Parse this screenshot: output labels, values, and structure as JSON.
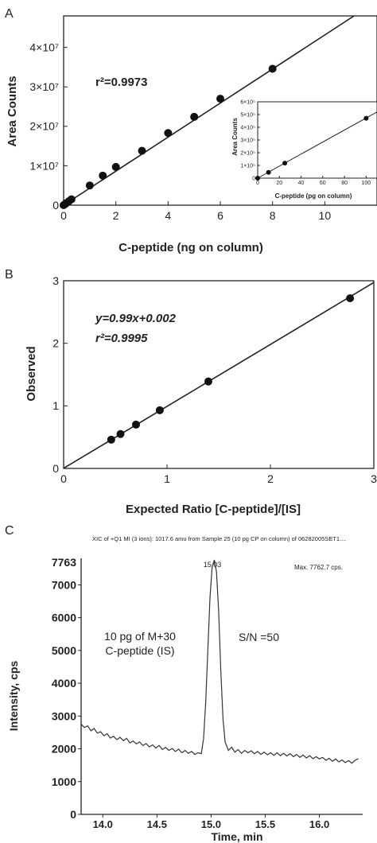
{
  "panels": {
    "a": {
      "letter": "A",
      "annotation": "r²=0.9973"
    },
    "b": {
      "letter": "B",
      "annotation_eq": "y=0.99x+0.002",
      "annotation_r2": "r²=0.9995"
    },
    "c": {
      "letter": "C",
      "header": "XIC of +Q1 MI (3 ions): 1017.6 amu from Sample 25 (10 pg CP on column) of 06282005SET1....",
      "max_label": "Max. 7762.7 cps.",
      "peak_label": "15.03",
      "note_line1": "10 pg of M+30",
      "note_line2": "C-peptide (IS)",
      "sn_label": "S/N =50",
      "top_value": "7763"
    }
  },
  "chart_data": [
    {
      "id": "A",
      "type": "scatter",
      "xlabel": "C-peptide (ng on column)",
      "ylabel": "Area Counts",
      "xlim": [
        0,
        12
      ],
      "ylim": [
        0,
        48000000
      ],
      "xticks": [
        "0",
        "2",
        "4",
        "6",
        "8",
        "10"
      ],
      "yticks": [
        "0",
        "1×10⁷",
        "2×10⁷",
        "3×10⁷",
        "4×10⁷"
      ],
      "points": [
        [
          0.0,
          0
        ],
        [
          0.05,
          250000
        ],
        [
          0.1,
          500000
        ],
        [
          0.2,
          1000000
        ],
        [
          0.3,
          1500000
        ],
        [
          1.0,
          5000000
        ],
        [
          1.5,
          7500000
        ],
        [
          2.0,
          9700000
        ],
        [
          3.0,
          13800000
        ],
        [
          4.0,
          18300000
        ],
        [
          5.0,
          22400000
        ],
        [
          6.0,
          27000000
        ],
        [
          8.0,
          34600000
        ]
      ],
      "fit_line": [
        [
          0,
          0
        ],
        [
          12,
          51800000
        ]
      ],
      "inset": {
        "type": "scatter",
        "xlabel": "C-peptide (pg on column)",
        "ylabel": "Area Counts",
        "xlim": [
          0,
          110
        ],
        "ylim": [
          0,
          600000
        ],
        "xticks": [
          "0",
          "20",
          "40",
          "60",
          "80",
          "100"
        ],
        "yticks": [
          "0",
          "1×10⁵",
          "2×10⁵",
          "3×10⁵",
          "4×10⁵",
          "5×10⁵",
          "6×10⁵"
        ],
        "points": [
          [
            0,
            0
          ],
          [
            10,
            45000
          ],
          [
            25,
            118000
          ],
          [
            100,
            470000
          ]
        ],
        "fit_line": [
          [
            0,
            0
          ],
          [
            110,
            520000
          ]
        ]
      }
    },
    {
      "id": "B",
      "type": "scatter",
      "xlabel": "Expected Ratio [C-peptide]/[IS]",
      "ylabel": "Observed",
      "xlim": [
        0,
        3
      ],
      "ylim": [
        0,
        3
      ],
      "xticks": [
        "0",
        "1",
        "2",
        "3"
      ],
      "yticks": [
        "0",
        "1",
        "2",
        "3"
      ],
      "points": [
        [
          0.46,
          0.46
        ],
        [
          0.55,
          0.55
        ],
        [
          0.7,
          0.7
        ],
        [
          0.93,
          0.93
        ],
        [
          1.4,
          1.39
        ],
        [
          2.77,
          2.72
        ]
      ],
      "fit_line": [
        [
          0,
          0.002
        ],
        [
          3,
          2.972
        ]
      ]
    },
    {
      "id": "C",
      "type": "line",
      "xlabel": "Time, min",
      "ylabel": "Intensity, cps",
      "xlim": [
        13.8,
        16.4
      ],
      "ylim": [
        0,
        7763
      ],
      "xticks": [
        "14.0",
        "14.5",
        "15.0",
        "15.5",
        "16.0"
      ],
      "yticks": [
        "0",
        "1000",
        "2000",
        "3000",
        "4000",
        "5000",
        "6000",
        "7000"
      ],
      "series": [
        {
          "values": [
            [
              13.8,
              2750
            ],
            [
              13.83,
              2650
            ],
            [
              13.86,
              2700
            ],
            [
              13.89,
              2550
            ],
            [
              13.92,
              2620
            ],
            [
              13.95,
              2480
            ],
            [
              13.98,
              2520
            ],
            [
              14.01,
              2400
            ],
            [
              14.04,
              2460
            ],
            [
              14.07,
              2330
            ],
            [
              14.1,
              2380
            ],
            [
              14.13,
              2280
            ],
            [
              14.16,
              2350
            ],
            [
              14.19,
              2250
            ],
            [
              14.22,
              2320
            ],
            [
              14.25,
              2180
            ],
            [
              14.28,
              2240
            ],
            [
              14.31,
              2150
            ],
            [
              14.34,
              2210
            ],
            [
              14.37,
              2100
            ],
            [
              14.4,
              2160
            ],
            [
              14.43,
              2060
            ],
            [
              14.46,
              2120
            ],
            [
              14.49,
              2020
            ],
            [
              14.52,
              2100
            ],
            [
              14.55,
              1980
            ],
            [
              14.58,
              2040
            ],
            [
              14.61,
              1950
            ],
            [
              14.64,
              2010
            ],
            [
              14.67,
              1920
            ],
            [
              14.7,
              1990
            ],
            [
              14.73,
              1880
            ],
            [
              14.76,
              1950
            ],
            [
              14.79,
              1860
            ],
            [
              14.82,
              1920
            ],
            [
              14.85,
              1830
            ],
            [
              14.88,
              1880
            ],
            [
              14.91,
              1850
            ],
            [
              14.93,
              2300
            ],
            [
              14.95,
              3400
            ],
            [
              14.97,
              5000
            ],
            [
              14.99,
              6600
            ],
            [
              15.01,
              7550
            ],
            [
              15.03,
              7763
            ],
            [
              15.05,
              7400
            ],
            [
              15.07,
              6200
            ],
            [
              15.09,
              4400
            ],
            [
              15.11,
              2900
            ],
            [
              15.13,
              2200
            ],
            [
              15.16,
              1950
            ],
            [
              15.19,
              2050
            ],
            [
              15.22,
              1900
            ],
            [
              15.25,
              1980
            ],
            [
              15.28,
              1860
            ],
            [
              15.31,
              1950
            ],
            [
              15.34,
              1880
            ],
            [
              15.37,
              1940
            ],
            [
              15.4,
              1850
            ],
            [
              15.43,
              1920
            ],
            [
              15.46,
              1830
            ],
            [
              15.49,
              1900
            ],
            [
              15.52,
              1820
            ],
            [
              15.55,
              1880
            ],
            [
              15.58,
              1800
            ],
            [
              15.61,
              1880
            ],
            [
              15.64,
              1790
            ],
            [
              15.67,
              1860
            ],
            [
              15.7,
              1780
            ],
            [
              15.73,
              1850
            ],
            [
              15.76,
              1760
            ],
            [
              15.79,
              1830
            ],
            [
              15.82,
              1740
            ],
            [
              15.85,
              1810
            ],
            [
              15.88,
              1720
            ],
            [
              15.91,
              1790
            ],
            [
              15.94,
              1700
            ],
            [
              15.97,
              1760
            ],
            [
              16.0,
              1690
            ],
            [
              16.03,
              1740
            ],
            [
              16.06,
              1650
            ],
            [
              16.09,
              1710
            ],
            [
              16.12,
              1620
            ],
            [
              16.15,
              1690
            ],
            [
              16.18,
              1600
            ],
            [
              16.21,
              1660
            ],
            [
              16.24,
              1580
            ],
            [
              16.27,
              1640
            ],
            [
              16.3,
              1560
            ],
            [
              16.33,
              1650
            ],
            [
              16.36,
              1700
            ]
          ]
        }
      ]
    }
  ]
}
